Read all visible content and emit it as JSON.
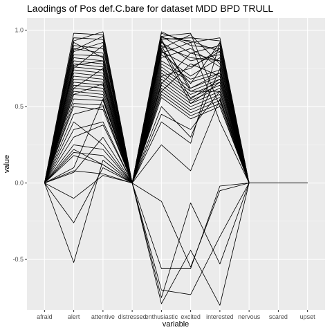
{
  "chart_data": {
    "type": "line",
    "title": "Laodings of Pos def.C.bare for dataset MDD BPD TRULL",
    "xlabel": "variable",
    "ylabel": "value",
    "categories": [
      "afraid",
      "alert",
      "attentive",
      "distressed",
      "enthusiastic",
      "excited",
      "interested",
      "nervous",
      "scared",
      "upset"
    ],
    "ylim": [
      -0.83,
      1.08
    ],
    "yticks": [
      1.0,
      0.5,
      0.0,
      -0.5
    ],
    "ytick_labels": [
      "1.0",
      "0.5",
      "0.0",
      "-0.5"
    ],
    "background": "#ebebeb",
    "grid": true,
    "line_color": "#000000",
    "series": [
      {
        "values": [
          0,
          0.98,
          0.97,
          0,
          0.98,
          0.92,
          0.95,
          0,
          0,
          0
        ]
      },
      {
        "values": [
          0,
          0.95,
          0.94,
          0,
          0.96,
          0.85,
          0.9,
          0,
          0,
          0
        ]
      },
      {
        "values": [
          0,
          0.93,
          0.99,
          0,
          0.99,
          0.9,
          0.88,
          0,
          0,
          0
        ]
      },
      {
        "values": [
          0,
          0.9,
          0.88,
          0,
          0.94,
          0.95,
          0.93,
          0,
          0,
          0
        ]
      },
      {
        "values": [
          0,
          0.88,
          0.85,
          0,
          0.92,
          0.8,
          0.84,
          0,
          0,
          0
        ]
      },
      {
        "values": [
          0,
          0.86,
          0.92,
          0,
          0.9,
          0.82,
          0.8,
          0,
          0,
          0
        ]
      },
      {
        "values": [
          0,
          0.84,
          0.83,
          0,
          0.88,
          0.97,
          0.78,
          0,
          0,
          0
        ]
      },
      {
        "values": [
          0,
          0.82,
          0.8,
          0,
          0.86,
          0.76,
          0.86,
          0,
          0,
          0
        ]
      },
      {
        "values": [
          0,
          0.8,
          0.78,
          0,
          0.84,
          0.7,
          0.82,
          0,
          0,
          0
        ]
      },
      {
        "values": [
          0,
          0.78,
          0.76,
          0,
          0.82,
          0.88,
          0.76,
          0,
          0,
          0
        ]
      },
      {
        "values": [
          0,
          0.76,
          0.74,
          0,
          0.8,
          0.68,
          0.74,
          0,
          0,
          0
        ]
      },
      {
        "values": [
          0,
          0.74,
          0.72,
          0,
          0.78,
          0.66,
          0.72,
          0,
          0,
          0
        ]
      },
      {
        "values": [
          0,
          0.72,
          0.7,
          0,
          0.76,
          0.62,
          0.7,
          0,
          0,
          0
        ]
      },
      {
        "values": [
          0,
          0.7,
          0.68,
          0,
          0.74,
          0.6,
          0.68,
          0,
          0,
          0
        ]
      },
      {
        "values": [
          0,
          0.68,
          0.66,
          0,
          0.72,
          0.58,
          0.66,
          0,
          0,
          0
        ]
      },
      {
        "values": [
          0,
          0.66,
          0.64,
          0,
          0.7,
          0.56,
          0.64,
          0,
          0,
          0
        ]
      },
      {
        "values": [
          0,
          0.64,
          0.62,
          0,
          0.68,
          0.54,
          0.62,
          0,
          0,
          0
        ]
      },
      {
        "values": [
          0,
          0.62,
          0.6,
          0,
          0.66,
          0.52,
          0.6,
          0,
          0,
          0
        ]
      },
      {
        "values": [
          0,
          0.6,
          0.58,
          0,
          0.64,
          0.5,
          0.58,
          0,
          0,
          0
        ]
      },
      {
        "values": [
          0,
          0.58,
          0.56,
          0,
          0.62,
          0.48,
          0.56,
          0,
          0,
          0
        ]
      },
      {
        "values": [
          0,
          0.55,
          0.54,
          0,
          0.6,
          0.46,
          0.54,
          0,
          0,
          0
        ]
      },
      {
        "values": [
          0,
          0.52,
          0.51,
          0,
          0.58,
          0.44,
          0.52,
          0,
          0,
          0
        ]
      },
      {
        "values": [
          0,
          0.5,
          0.48,
          0,
          0.56,
          0.42,
          0.5,
          0,
          0,
          0
        ]
      },
      {
        "values": [
          0,
          0.35,
          0.4,
          0,
          0.93,
          0.62,
          0.72,
          0,
          0,
          0
        ]
      },
      {
        "values": [
          0,
          0.3,
          0.38,
          0,
          0.9,
          0.55,
          0.68,
          0,
          0,
          0
        ]
      },
      {
        "values": [
          0,
          0.25,
          0.22,
          0,
          0.88,
          0.52,
          0.66,
          0,
          0,
          0
        ]
      },
      {
        "values": [
          0,
          0.2,
          0.18,
          0,
          0.45,
          0.35,
          0.6,
          0,
          0,
          0
        ]
      },
      {
        "values": [
          0,
          0.18,
          0.12,
          0,
          0.25,
          0.08,
          0.55,
          0,
          0,
          0
        ]
      },
      {
        "values": [
          0,
          0.08,
          0.06,
          0,
          0.5,
          0.3,
          0.75,
          0,
          0,
          0
        ]
      },
      {
        "values": [
          0,
          0.07,
          0.3,
          0,
          0.4,
          0.26,
          0.92,
          0,
          0,
          0
        ]
      },
      {
        "values": [
          0,
          0.1,
          0.55,
          0,
          0.85,
          0.92,
          0.4,
          0,
          0,
          0
        ]
      },
      {
        "values": [
          0,
          0.45,
          0.5,
          0,
          0.96,
          0.98,
          0.5,
          0,
          0,
          0
        ]
      },
      {
        "values": [
          0,
          0.58,
          0.65,
          0,
          0.95,
          0.93,
          0.86,
          0,
          0,
          0
        ]
      },
      {
        "values": [
          0,
          0.62,
          0.75,
          0,
          0.87,
          0.65,
          0.92,
          0,
          0,
          0
        ]
      },
      {
        "values": [
          0,
          0.75,
          0.9,
          0,
          0.7,
          0.75,
          0.88,
          0,
          0,
          0
        ]
      },
      {
        "values": [
          0,
          0.92,
          0.82,
          0,
          0.65,
          0.85,
          0.8,
          0,
          0,
          0
        ]
      },
      {
        "values": [
          0,
          0.87,
          0.96,
          0,
          0.6,
          0.78,
          0.7,
          0,
          0,
          0
        ]
      },
      {
        "values": [
          0,
          0.77,
          0.8,
          0,
          0.94,
          0.6,
          0.6,
          0,
          0,
          0
        ]
      },
      {
        "values": [
          0,
          -0.1,
          0.05,
          0,
          -0.12,
          -0.55,
          -0.05,
          0,
          0,
          0
        ]
      },
      {
        "values": [
          0,
          -0.26,
          0.1,
          0,
          -0.56,
          -0.56,
          -0.02,
          0,
          0,
          0
        ]
      },
      {
        "values": [
          0,
          -0.52,
          0.15,
          0,
          -0.75,
          -0.13,
          -0.53,
          0,
          0,
          0
        ]
      },
      {
        "values": [
          0,
          0.22,
          0.12,
          0,
          -0.79,
          -0.44,
          -0.8,
          0,
          0,
          0
        ]
      },
      {
        "values": [
          0,
          0.4,
          0.25,
          0,
          -0.7,
          -0.73,
          -0.35,
          0,
          0,
          0
        ]
      }
    ]
  }
}
